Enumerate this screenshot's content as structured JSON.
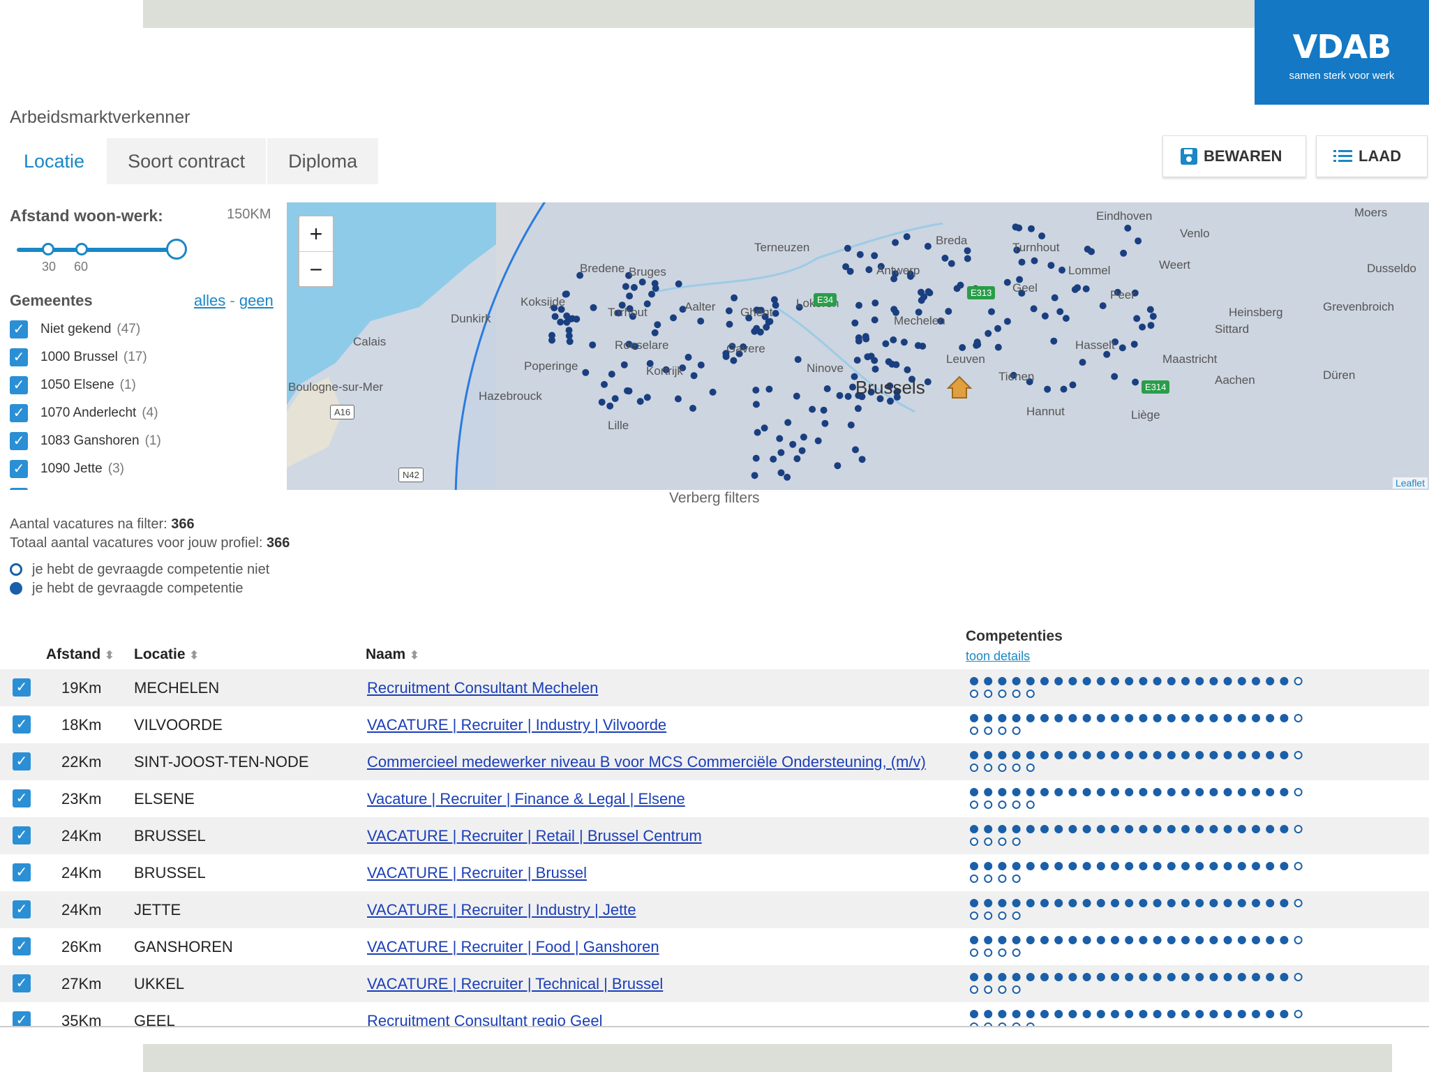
{
  "header": {
    "logo_text": "VDAB",
    "logo_tagline": "samen sterk voor werk",
    "app_title": "Arbeidsmarktverkenner",
    "save_label": "BEWAREN",
    "load_label": "LAAD"
  },
  "tabs": [
    {
      "label": "Locatie",
      "active": true
    },
    {
      "label": "Soort contract",
      "active": false
    },
    {
      "label": "Diploma",
      "active": false
    }
  ],
  "filters": {
    "distance_label": "Afstand woon-werk:",
    "distance_max_label": "150KM",
    "slider_ticks": [
      "30",
      "60"
    ],
    "slider_value_km": 150,
    "gemeentes_title": "Gemeentes",
    "all_link": "alles",
    "separator": "-",
    "none_link": "geen",
    "gemeentes": [
      {
        "name": "Niet gekend",
        "count": "(47)"
      },
      {
        "name": "1000 Brussel",
        "count": "(17)"
      },
      {
        "name": "1050 Elsene",
        "count": "(1)"
      },
      {
        "name": "1070 Anderlecht",
        "count": "(4)"
      },
      {
        "name": "1083 Ganshoren",
        "count": "(1)"
      },
      {
        "name": "1090 Jette",
        "count": "(3)"
      }
    ]
  },
  "map": {
    "zoom_in": "+",
    "zoom_out": "−",
    "attribution": "Leaflet",
    "places": [
      "Eindhoven",
      "Venlo",
      "Moers",
      "Breda",
      "Turnhout",
      "Weert",
      "Terneuzen",
      "Bredene",
      "Bruges",
      "Antwerp",
      "Lommel",
      "Dusseldo",
      "Geel",
      "Peer",
      "Heinsberg",
      "Grevenbroich",
      "Koksijde",
      "Torhout",
      "Aalter",
      "Ghent",
      "Lokeren",
      "Dunkirk",
      "Sittard",
      "Mechelen",
      "Calais",
      "Roeselare",
      "Gavere",
      "Hasselt",
      "Leuven",
      "Poperinge",
      "Kortrijk",
      "Ninove",
      "Maastricht",
      "Tienen",
      "Aachen",
      "Düren",
      "Boulogne-sur-Mer",
      "Hazebrouck",
      "Brussels",
      "Hannut",
      "Liège",
      "Lille"
    ],
    "roads": [
      "E34",
      "E313",
      "E314",
      "A16",
      "N42"
    ]
  },
  "hide_filters_label": "Verberg filters",
  "summary": {
    "filtered_label": "Aantal vacatures na filter:",
    "filtered_value": "366",
    "total_label": "Totaal aantal vacatures voor jouw profiel:",
    "total_value": "366"
  },
  "legend": {
    "missing": "je hebt de gevraagde competentie niet",
    "has": "je hebt de gevraagde competentie"
  },
  "table": {
    "headers": {
      "distance": "Afstand",
      "location": "Locatie",
      "name": "Naam",
      "competences": "Competenties"
    },
    "details_link": "toon details",
    "rows": [
      {
        "distance": "19Km",
        "location": "MECHELEN",
        "name": "Recruitment Consultant Mechelen",
        "comp_has": 23,
        "comp_total": 29
      },
      {
        "distance": "18Km",
        "location": "VILVOORDE",
        "name": "VACATURE | Recruiter | Industry | Vilvoorde",
        "comp_has": 23,
        "comp_total": 28
      },
      {
        "distance": "22Km",
        "location": "SINT-JOOST-TEN-NODE",
        "name": "Commercieel medewerker niveau B voor MCS Commerciële Ondersteuning, (m/v)",
        "comp_has": 23,
        "comp_total": 29
      },
      {
        "distance": "23Km",
        "location": "ELSENE",
        "name": "Vacature | Recruiter | Finance & Legal | Elsene",
        "comp_has": 23,
        "comp_total": 29
      },
      {
        "distance": "24Km",
        "location": "BRUSSEL",
        "name": "VACATURE | Recruiter | Retail | Brussel Centrum",
        "comp_has": 23,
        "comp_total": 28
      },
      {
        "distance": "24Km",
        "location": "BRUSSEL",
        "name": "VACATURE | Recruiter | Brussel",
        "comp_has": 23,
        "comp_total": 28
      },
      {
        "distance": "24Km",
        "location": "JETTE",
        "name": "VACATURE | Recruiter | Industry | Jette",
        "comp_has": 23,
        "comp_total": 28
      },
      {
        "distance": "26Km",
        "location": "GANSHOREN",
        "name": "VACATURE | Recruiter | Food | Ganshoren",
        "comp_has": 23,
        "comp_total": 28
      },
      {
        "distance": "27Km",
        "location": "UKKEL",
        "name": "VACATURE | Recruiter | Technical | Brussel",
        "comp_has": 23,
        "comp_total": 28
      },
      {
        "distance": "35Km",
        "location": "GEEL",
        "name": "Recruitment Consultant regio Geel",
        "comp_has": 23,
        "comp_total": 29
      }
    ]
  },
  "colors": {
    "accent": "#1a87c6",
    "logo_bg": "#1478c4",
    "marker": "#1a3f80",
    "link": "#1a3eb8"
  }
}
